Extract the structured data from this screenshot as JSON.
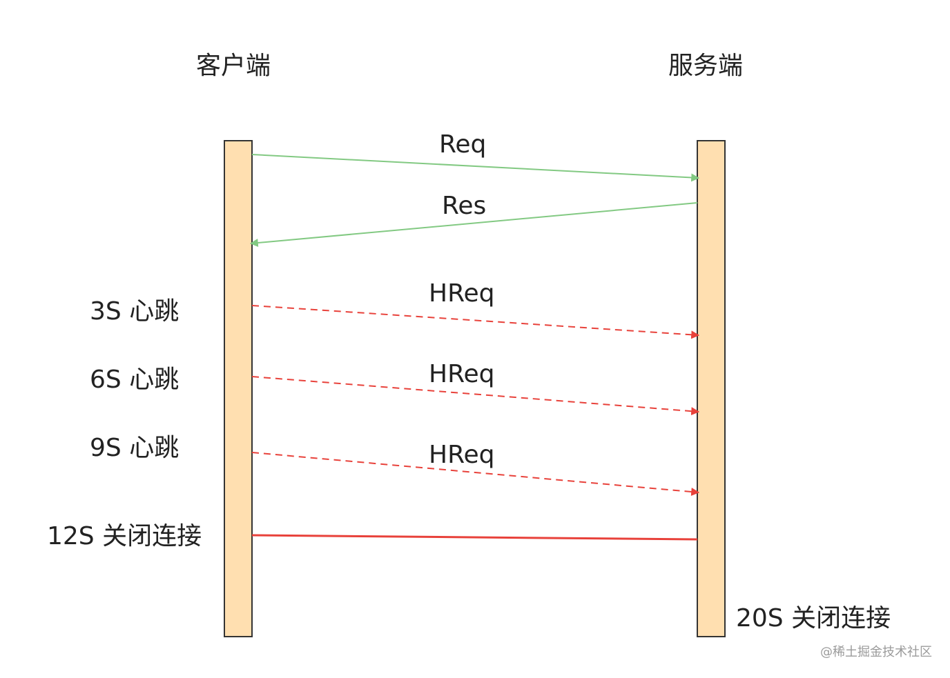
{
  "actors": {
    "client": "客户端",
    "server": "服务端"
  },
  "messages": [
    {
      "label": "Req",
      "direction": "client-to-server",
      "style": "solid",
      "color": "#82c982"
    },
    {
      "label": "Res",
      "direction": "server-to-client",
      "style": "solid",
      "color": "#82c982"
    },
    {
      "label": "HReq",
      "direction": "client-to-server",
      "style": "dashed",
      "color": "#e8413a"
    },
    {
      "label": "HReq",
      "direction": "client-to-server",
      "style": "dashed",
      "color": "#e8413a"
    },
    {
      "label": "HReq",
      "direction": "client-to-server",
      "style": "dashed",
      "color": "#e8413a"
    }
  ],
  "client_notes": [
    "3S 心跳",
    "6S 心跳",
    "9S 心跳",
    "12S 关闭连接"
  ],
  "server_note": "20S 关闭连接",
  "close_line_color": "#e8413a",
  "lifeline_fill": "#ffdfb0",
  "lifeline_stroke": "#333333",
  "watermark": "@稀土掘金技术社区"
}
